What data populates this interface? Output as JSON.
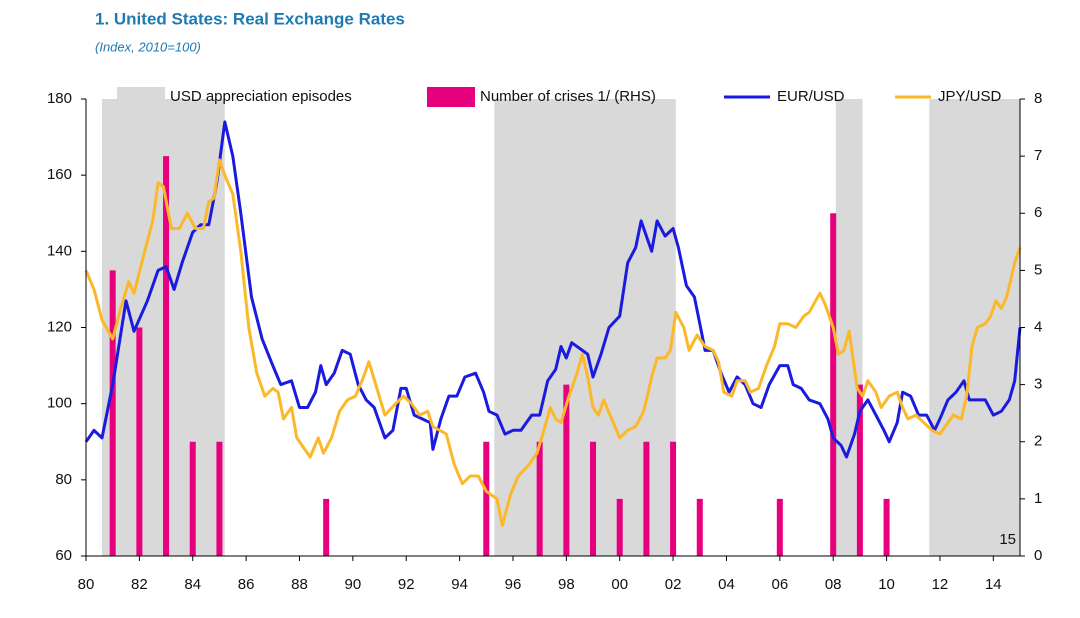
{
  "chart_data": {
    "type": "line",
    "title": "1. United States: Real Exchange Rates",
    "subtitle": "(Index, 2010=100)",
    "annotation": "15",
    "xlim": [
      1980,
      2015
    ],
    "xticks": [
      {
        "value": 1980,
        "label": "80"
      },
      {
        "value": 1982,
        "label": "82"
      },
      {
        "value": 1984,
        "label": "84"
      },
      {
        "value": 1986,
        "label": "86"
      },
      {
        "value": 1988,
        "label": "88"
      },
      {
        "value": 1990,
        "label": "90"
      },
      {
        "value": 1992,
        "label": "92"
      },
      {
        "value": 1994,
        "label": "94"
      },
      {
        "value": 1996,
        "label": "96"
      },
      {
        "value": 1998,
        "label": "98"
      },
      {
        "value": 2000,
        "label": "00"
      },
      {
        "value": 2002,
        "label": "02"
      },
      {
        "value": 2004,
        "label": "04"
      },
      {
        "value": 2006,
        "label": "06"
      },
      {
        "value": 2008,
        "label": "08"
      },
      {
        "value": 2010,
        "label": "10"
      },
      {
        "value": 2012,
        "label": "12"
      },
      {
        "value": 2014,
        "label": "14"
      }
    ],
    "ylim": [
      60,
      180
    ],
    "yticks": [
      60,
      80,
      100,
      120,
      140,
      160,
      180
    ],
    "y2lim": [
      0,
      8
    ],
    "y2ticks": [
      0,
      1,
      2,
      3,
      4,
      5,
      6,
      7,
      8
    ],
    "episodes": {
      "name": "USD appreciation episodes",
      "color": "#d9d9d9",
      "spans": [
        [
          1980.6,
          1985.2
        ],
        [
          1995.3,
          2002.1
        ],
        [
          2008.1,
          2009.1
        ],
        [
          2011.6,
          2015
        ]
      ]
    },
    "series": [
      {
        "name": "Number of crises 1/ (RHS)",
        "color": "#e6007e",
        "type": "bar",
        "axis": "y2",
        "x": [
          1981,
          1982,
          1983,
          1984,
          1985,
          1989,
          1995,
          1997,
          1998,
          1999,
          2000,
          2001,
          2002,
          2003,
          2006,
          2008,
          2009,
          2010
        ],
        "values": [
          5,
          4,
          7,
          2,
          2,
          1,
          2,
          2,
          3,
          2,
          1,
          2,
          2,
          1,
          1,
          6,
          3,
          1
        ]
      },
      {
        "name": "EUR/USD",
        "color": "#1a1ae0",
        "type": "line",
        "x": [
          1980.0,
          1980.3,
          1980.6,
          1981.0,
          1981.5,
          1981.8,
          1982.3,
          1982.7,
          1983.0,
          1983.3,
          1983.6,
          1984.0,
          1984.3,
          1984.6,
          1984.9,
          1985.2,
          1985.5,
          1985.8,
          1986.2,
          1986.6,
          1987.0,
          1987.3,
          1987.7,
          1988.0,
          1988.3,
          1988.6,
          1988.8,
          1989.0,
          1989.3,
          1989.6,
          1989.9,
          1990.2,
          1990.5,
          1990.8,
          1991.2,
          1991.5,
          1991.8,
          1992.0,
          1992.3,
          1992.6,
          1992.9,
          1993.0,
          1993.3,
          1993.6,
          1993.9,
          1994.2,
          1994.6,
          1994.9,
          1995.1,
          1995.4,
          1995.7,
          1996.0,
          1996.3,
          1996.7,
          1997.0,
          1997.3,
          1997.6,
          1997.8,
          1998.0,
          1998.2,
          1998.6,
          1998.8,
          1999.0,
          1999.3,
          1999.6,
          2000.0,
          2000.3,
          2000.6,
          2000.8,
          2001.0,
          2001.2,
          2001.4,
          2001.7,
          2002.0,
          2002.2,
          2002.5,
          2002.8,
          2003.0,
          2003.2,
          2003.5,
          2003.8,
          2004.1,
          2004.4,
          2004.7,
          2005.0,
          2005.3,
          2005.6,
          2006.0,
          2006.3,
          2006.5,
          2006.8,
          2007.1,
          2007.5,
          2007.8,
          2008.0,
          2008.3,
          2008.5,
          2008.8,
          2009.0,
          2009.3,
          2009.6,
          2009.9,
          2010.1,
          2010.4,
          2010.6,
          2010.9,
          2011.2,
          2011.5,
          2011.8,
          2012.0,
          2012.3,
          2012.6,
          2012.9,
          2013.1,
          2013.4,
          2013.7,
          2014.0,
          2014.3,
          2014.6,
          2014.8,
          2015.0
        ],
        "values": [
          90,
          93,
          91,
          105,
          127,
          119,
          127,
          135,
          136,
          130,
          137,
          145,
          147,
          147,
          158,
          174,
          165,
          150,
          128,
          117,
          110,
          105,
          106,
          99,
          99,
          103,
          110,
          105,
          108,
          114,
          113,
          105,
          101,
          99,
          91,
          93,
          104,
          104,
          97,
          96,
          95,
          88,
          96,
          102,
          102,
          107,
          108,
          103,
          98,
          97,
          92,
          93,
          93,
          97,
          97,
          106,
          109,
          115,
          112,
          116,
          114,
          113,
          107,
          113,
          120,
          123,
          137,
          141,
          148,
          144,
          140,
          148,
          144,
          146,
          141,
          131,
          128,
          121,
          114,
          114,
          108,
          103,
          107,
          105,
          100,
          99,
          105,
          110,
          110,
          105,
          104,
          101,
          100,
          96,
          91,
          89,
          86,
          92,
          98,
          101,
          97,
          93,
          90,
          95,
          103,
          102,
          97,
          97,
          93,
          96,
          101,
          103,
          106,
          101,
          101,
          101,
          97,
          98,
          101,
          106,
          120
        ]
      },
      {
        "name": "JPY/USD",
        "color": "#fbb829",
        "type": "line",
        "x": [
          1980.0,
          1980.3,
          1980.6,
          1981.0,
          1981.3,
          1981.6,
          1981.8,
          1982.2,
          1982.5,
          1982.7,
          1982.9,
          1983.2,
          1983.5,
          1983.8,
          1984.1,
          1984.4,
          1984.6,
          1984.8,
          1985.0,
          1985.2,
          1985.5,
          1985.8,
          1986.1,
          1986.4,
          1986.7,
          1987.0,
          1987.2,
          1987.4,
          1987.7,
          1987.9,
          1988.2,
          1988.4,
          1988.7,
          1988.9,
          1989.2,
          1989.5,
          1989.8,
          1990.1,
          1990.4,
          1990.6,
          1990.9,
          1991.2,
          1991.6,
          1991.9,
          1992.2,
          1992.5,
          1992.8,
          1993.0,
          1993.5,
          1993.8,
          1994.1,
          1994.4,
          1994.7,
          1995.0,
          1995.2,
          1995.4,
          1995.6,
          1995.9,
          1996.2,
          1996.6,
          1996.9,
          1997.2,
          1997.4,
          1997.6,
          1997.8,
          1998.1,
          1998.4,
          1998.6,
          1998.8,
          1999.0,
          1999.2,
          1999.4,
          1999.7,
          2000.0,
          2000.3,
          2000.6,
          2000.9,
          2001.2,
          2001.4,
          2001.7,
          2001.9,
          2002.1,
          2002.4,
          2002.6,
          2002.9,
          2003.2,
          2003.5,
          2003.7,
          2003.9,
          2004.2,
          2004.4,
          2004.7,
          2004.9,
          2005.2,
          2005.5,
          2005.8,
          2006.0,
          2006.3,
          2006.6,
          2006.9,
          2007.1,
          2007.5,
          2007.7,
          2008.0,
          2008.2,
          2008.4,
          2008.6,
          2008.9,
          2009.1,
          2009.3,
          2009.6,
          2009.8,
          2010.1,
          2010.4,
          2010.6,
          2010.8,
          2011.1,
          2011.4,
          2011.7,
          2012.0,
          2012.3,
          2012.5,
          2012.8,
          2013.0,
          2013.2,
          2013.4,
          2013.7,
          2013.9,
          2014.1,
          2014.3,
          2014.5,
          2014.8,
          2015.0
        ],
        "values": [
          135,
          130,
          122,
          117,
          125,
          132,
          129,
          140,
          148,
          158,
          157,
          146,
          146,
          150,
          146,
          146,
          153,
          154,
          164,
          160,
          155,
          140,
          120,
          108,
          102,
          104,
          103,
          96,
          99,
          91,
          88,
          86,
          91,
          87,
          91,
          98,
          101,
          102,
          107,
          111,
          104,
          97,
          100,
          102,
          100,
          97,
          98,
          94,
          92,
          84,
          79,
          81,
          81,
          77,
          76,
          75,
          68,
          76,
          81,
          84,
          87,
          94,
          99,
          96,
          95,
          102,
          108,
          113,
          107,
          99,
          97,
          101,
          96,
          91,
          93,
          94,
          98,
          107,
          112,
          112,
          114,
          124,
          120,
          114,
          118,
          115,
          114,
          111,
          103,
          102,
          106,
          106,
          103,
          104,
          110,
          115,
          121,
          121,
          120,
          123,
          124,
          129,
          126,
          120,
          113,
          114,
          119,
          104,
          102,
          106,
          103,
          99,
          102,
          103,
          99,
          96,
          97,
          95,
          93,
          92,
          95,
          97,
          96,
          102,
          115,
          120,
          121,
          123,
          127,
          125,
          128,
          137,
          141
        ]
      }
    ]
  }
}
